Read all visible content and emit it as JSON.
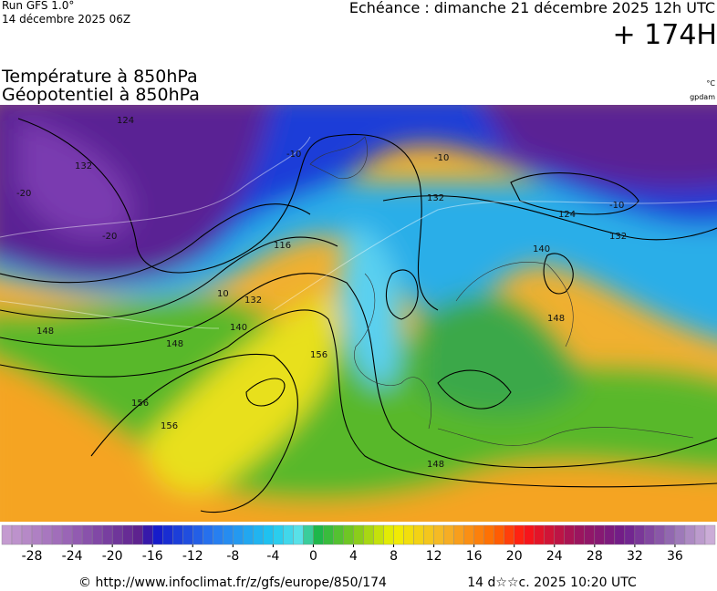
{
  "header": {
    "run": "Run GFS 1.0°",
    "run_date": "14 décembre 2025 06Z",
    "forecast": "Echéance : dimanche 21 décembre 2025 12h UTC",
    "lead": "+ 174H",
    "title_temperature": "Température à 850hPa",
    "title_geopotential": "Géopotentiel à 850hPa",
    "unit_temperature": "°C",
    "unit_geopotential": "gpdam"
  },
  "map": {
    "contour_labels": [
      "124",
      "132",
      "116",
      "132",
      "140",
      "148",
      "148",
      "156",
      "156",
      "156",
      "132",
      "124",
      "132",
      "140",
      "148",
      "148",
      "-10",
      "-10",
      "-20",
      "-20",
      "-10",
      "10"
    ]
  },
  "colorbar": {
    "min": -31,
    "max": 40,
    "step": 1,
    "stops": [
      {
        "value": -31,
        "color": "#c8a0d2"
      },
      {
        "value": -24,
        "color": "#9660b4"
      },
      {
        "value": -17,
        "color": "#5a1e8c"
      },
      {
        "value": -16,
        "color": "#1414c8"
      },
      {
        "value": -10,
        "color": "#2878f0"
      },
      {
        "value": -4,
        "color": "#1ec8f0"
      },
      {
        "value": -1,
        "color": "#64e6e6"
      },
      {
        "value": 0,
        "color": "#10b450"
      },
      {
        "value": 4,
        "color": "#7cc81e"
      },
      {
        "value": 8,
        "color": "#f0f000"
      },
      {
        "value": 13,
        "color": "#f5b428"
      },
      {
        "value": 18,
        "color": "#ff6a00"
      },
      {
        "value": 21,
        "color": "#ff1414"
      },
      {
        "value": 26,
        "color": "#a0145a"
      },
      {
        "value": 31,
        "color": "#6e1e8c"
      },
      {
        "value": 36,
        "color": "#9670b4"
      },
      {
        "value": 40,
        "color": "#d2b4dc"
      }
    ],
    "ticks": [
      -28,
      -24,
      -20,
      -16,
      -12,
      -8,
      -4,
      0,
      4,
      8,
      12,
      16,
      20,
      24,
      28,
      32,
      36
    ]
  },
  "footer": {
    "source": "© http://www.infoclimat.fr/z/gfs/europe/850/174",
    "timestamp": "14 d☆☆c. 2025 10:20 UTC"
  }
}
